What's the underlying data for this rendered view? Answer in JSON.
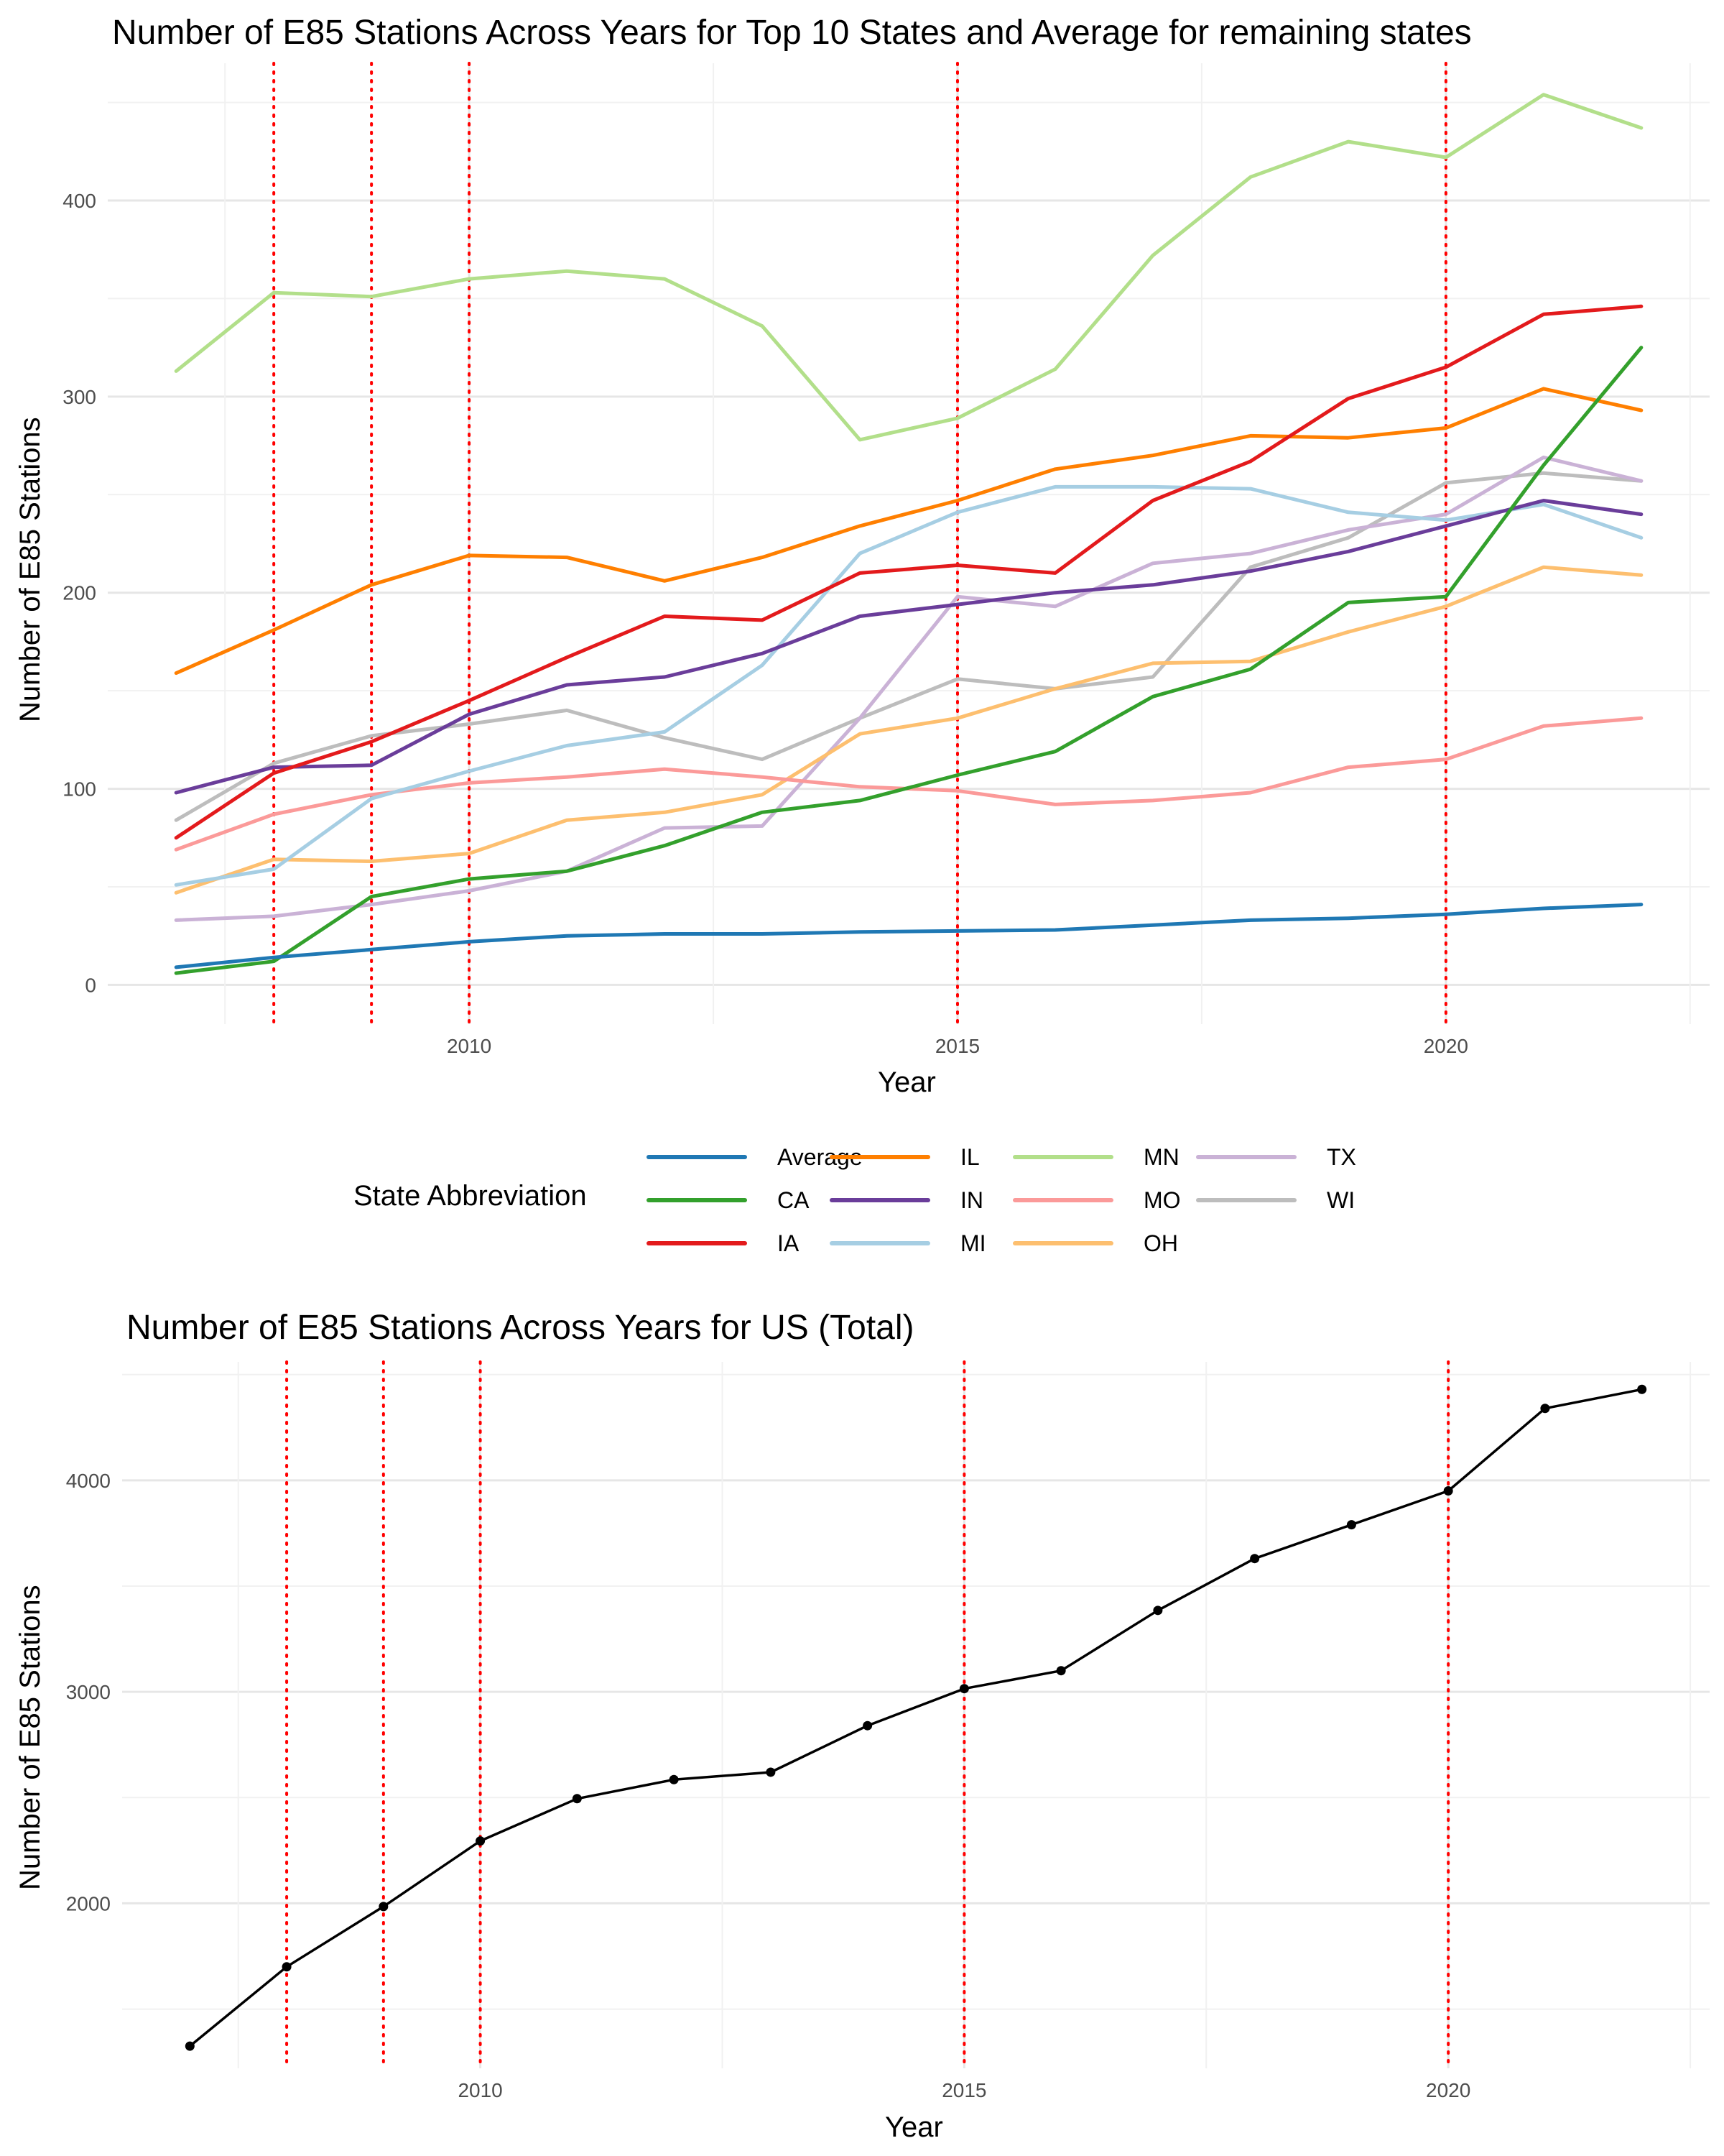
{
  "chart_data": [
    {
      "type": "line",
      "title": "Number of E85 Stations Across Years for Top 10 States and Average for remaining states",
      "xlabel": "Year",
      "ylabel": "Number of E85 Stations",
      "x": [
        2007,
        2008,
        2009,
        2010,
        2011,
        2012,
        2013,
        2014,
        2015,
        2016,
        2017,
        2018,
        2019,
        2020,
        2021,
        2022
      ],
      "xlim": [
        2006.3,
        2022.7
      ],
      "ylim": [
        -20,
        470
      ],
      "xticks": [
        2010,
        2015,
        2020
      ],
      "yticks": [
        0,
        100,
        200,
        300,
        400
      ],
      "vlines": [
        2008,
        2009,
        2010,
        2015,
        2020
      ],
      "vline_color": "#ff0000",
      "grid": true,
      "legend_title": "State Abbreviation",
      "legend_position": "bottom",
      "series": [
        {
          "name": "Average",
          "color": "#1f78b4",
          "values": [
            9,
            14,
            18,
            22,
            25,
            26,
            26,
            27,
            27.5,
            28,
            30.5,
            33,
            34,
            36,
            39,
            41
          ]
        },
        {
          "name": "CA",
          "color": "#33a02c",
          "values": [
            6,
            12,
            45,
            54,
            58,
            71,
            88,
            94,
            107,
            119,
            147,
            161,
            195,
            198,
            265,
            325
          ]
        },
        {
          "name": "IA",
          "color": "#e31a1c",
          "values": [
            75,
            108,
            124,
            145,
            167,
            188,
            186,
            210,
            214,
            210,
            247,
            267,
            299,
            315,
            342,
            346
          ]
        },
        {
          "name": "IL",
          "color": "#ff7f00",
          "values": [
            159,
            181,
            204,
            219,
            218,
            206,
            218,
            234,
            247,
            263,
            270,
            280,
            279,
            284,
            304,
            293
          ]
        },
        {
          "name": "IN",
          "color": "#6a3d9a",
          "values": [
            98,
            111,
            112,
            138,
            153,
            157,
            169,
            188,
            194,
            200,
            204,
            211,
            221,
            234,
            247,
            240
          ]
        },
        {
          "name": "MI",
          "color": "#a6cee3",
          "values": [
            51,
            59,
            95,
            109,
            122,
            129,
            163,
            220,
            241,
            254,
            254,
            253,
            241,
            237,
            245,
            228
          ]
        },
        {
          "name": "MN",
          "color": "#b2df8a",
          "values": [
            313,
            353,
            351,
            360,
            364,
            360,
            336,
            278,
            289,
            314,
            372,
            412,
            430,
            422,
            454,
            437
          ]
        },
        {
          "name": "MO",
          "color": "#fb9a99",
          "values": [
            69,
            87,
            97,
            103,
            106,
            110,
            106,
            101,
            99,
            92,
            94,
            98,
            111,
            115,
            132,
            136
          ]
        },
        {
          "name": "OH",
          "color": "#fdbf6f",
          "values": [
            47,
            64,
            63,
            67,
            84,
            88,
            97,
            128,
            136,
            151,
            164,
            165,
            180,
            193,
            213,
            209
          ]
        },
        {
          "name": "TX",
          "color": "#cab2d6",
          "values": [
            33,
            35,
            41,
            48,
            58,
            80,
            81,
            136,
            198,
            193,
            215,
            220,
            232,
            240,
            269,
            257
          ]
        },
        {
          "name": "WI",
          "color": "#bdbdbd",
          "values": [
            84,
            113,
            127,
            133,
            140,
            126,
            115,
            136,
            156,
            151,
            157,
            213,
            228,
            256,
            261,
            257
          ]
        }
      ]
    },
    {
      "type": "line",
      "title": "Number of E85 Stations Across Years for US (Total)",
      "xlabel": "Year",
      "ylabel": "Number of E85 Stations",
      "x": [
        2007,
        2008,
        2009,
        2010,
        2011,
        2012,
        2013,
        2014,
        2015,
        2016,
        2017,
        2018,
        2019,
        2020,
        2021,
        2022
      ],
      "xlim": [
        2006.3,
        2022.7
      ],
      "ylim": [
        1220,
        4560
      ],
      "xticks": [
        2010,
        2015,
        2020
      ],
      "yticks": [
        2000,
        3000,
        4000
      ],
      "vlines": [
        2008,
        2009,
        2010,
        2015,
        2020
      ],
      "vline_color": "#ff0000",
      "grid": true,
      "markers": true,
      "series": [
        {
          "color": "#000000",
          "values": [
            1325,
            1700,
            1985,
            2295,
            2495,
            2585,
            2620,
            2840,
            3015,
            3100,
            3385,
            3630,
            3790,
            3950,
            4340,
            4430
          ]
        }
      ]
    }
  ]
}
